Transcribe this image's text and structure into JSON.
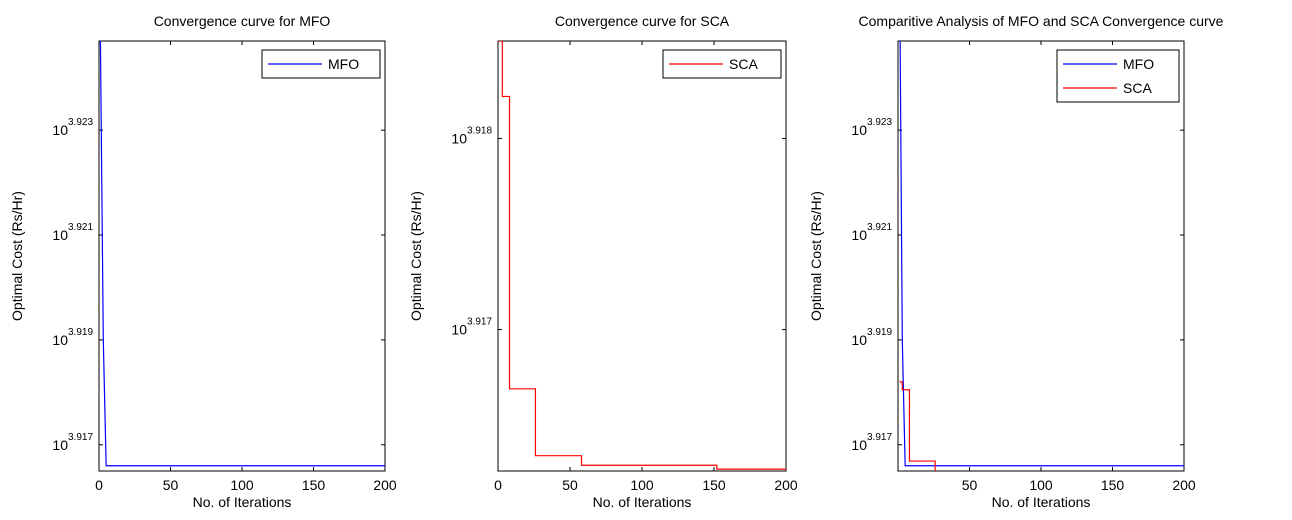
{
  "chart_data": [
    {
      "type": "line",
      "title": "Convergence curve for MFO",
      "xlabel": "No. of Iterations",
      "ylabel": "Optimal Cost (Rs/Hr)",
      "xlim": [
        0,
        200
      ],
      "ylim": [
        3.9165,
        3.9247
      ],
      "y_scale": "log10",
      "x_ticks": [
        "0",
        "50",
        "100",
        "150",
        "200"
      ],
      "y_ticks": [
        {
          "base": "10",
          "exp": "3.923",
          "value": 3.923
        },
        {
          "base": "10",
          "exp": "3.921",
          "value": 3.921
        },
        {
          "base": "10",
          "exp": "3.919",
          "value": 3.919
        },
        {
          "base": "10",
          "exp": "3.917",
          "value": 3.917
        }
      ],
      "grid": false,
      "legend": "top-right",
      "series": [
        {
          "name": "MFO",
          "color": "#0000ff",
          "x": [
            0,
            1,
            3,
            5,
            10,
            50,
            100,
            150,
            200
          ],
          "y": [
            3.9247,
            3.9247,
            3.919,
            3.9166,
            3.9166,
            3.9166,
            3.9166,
            3.9166,
            3.9166
          ]
        }
      ]
    },
    {
      "type": "line",
      "title": "Convergence curve for SCA",
      "xlabel": "No. of Iterations",
      "ylabel": "Optimal Cost (Rs/Hr)",
      "xlim": [
        0,
        200
      ],
      "ylim": [
        3.91626,
        3.91851
      ],
      "y_scale": "log10",
      "x_ticks": [
        "0",
        "50",
        "100",
        "150",
        "200"
      ],
      "y_ticks": [
        {
          "base": "10",
          "exp": "3.918",
          "value": 3.918
        },
        {
          "base": "10",
          "exp": "3.917",
          "value": 3.917
        }
      ],
      "grid": false,
      "legend": "top-right",
      "series": [
        {
          "name": "SCA",
          "color": "#ff0000",
          "x": [
            0,
            1,
            3,
            3,
            8,
            8,
            26,
            26,
            58,
            58,
            152,
            152,
            200
          ],
          "y": [
            3.91851,
            3.91851,
            3.91851,
            3.91822,
            3.91822,
            3.91669,
            3.91669,
            3.91634,
            3.91634,
            3.91629,
            3.91629,
            3.91627,
            3.91627
          ]
        }
      ]
    },
    {
      "type": "line",
      "title": "Comparitive Analysis of MFO and SCA Convergence curve",
      "xlabel": "No. of Iterations",
      "ylabel": "Optimal Cost (Rs/Hr)",
      "xlim": [
        0,
        200
      ],
      "ylim": [
        3.9165,
        3.9247
      ],
      "y_scale": "log10",
      "x_ticks": [
        "50",
        "100",
        "150",
        "200"
      ],
      "x_tick_values": [
        50,
        100,
        150,
        200
      ],
      "y_ticks": [
        {
          "base": "10",
          "exp": "3.923",
          "value": 3.923
        },
        {
          "base": "10",
          "exp": "3.921",
          "value": 3.921
        },
        {
          "base": "10",
          "exp": "3.919",
          "value": 3.919
        },
        {
          "base": "10",
          "exp": "3.917",
          "value": 3.917
        }
      ],
      "grid": false,
      "legend": "top-right",
      "series": [
        {
          "name": "MFO",
          "color": "#0000ff",
          "x": [
            1,
            1.5,
            3,
            5,
            10,
            50,
            100,
            150,
            200
          ],
          "y": [
            3.9247,
            3.9247,
            3.919,
            3.9166,
            3.9166,
            3.9166,
            3.9166,
            3.9166,
            3.9166
          ]
        },
        {
          "name": "SCA",
          "color": "#ff0000",
          "x": [
            1,
            1,
            3,
            3,
            8,
            8,
            26,
            26,
            58,
            58,
            152,
            152,
            200
          ],
          "y": [
            3.9182,
            3.9182,
            3.9182,
            3.91805,
            3.91805,
            3.91669,
            3.91669,
            3.91634,
            3.91634,
            3.91629,
            3.91629,
            3.91627,
            3.91627
          ]
        }
      ]
    }
  ]
}
